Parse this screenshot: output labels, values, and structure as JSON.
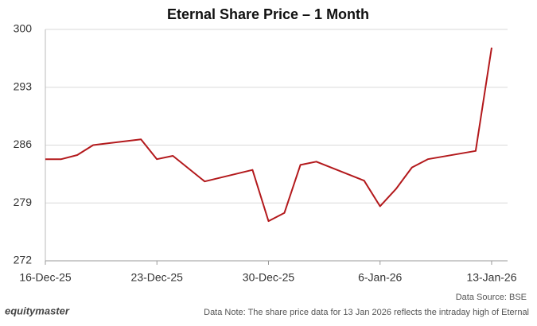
{
  "chart_data": {
    "type": "line",
    "title": "Eternal Share Price – 1 Month",
    "x": [
      "2025-12-16",
      "2025-12-17",
      "2025-12-18",
      "2025-12-19",
      "2025-12-22",
      "2025-12-23",
      "2025-12-24",
      "2025-12-26",
      "2025-12-29",
      "2025-12-30",
      "2025-12-31",
      "2026-01-01",
      "2026-01-02",
      "2026-01-05",
      "2026-01-06",
      "2026-01-07",
      "2026-01-08",
      "2026-01-09",
      "2026-01-12",
      "2026-01-13"
    ],
    "values": [
      284.3,
      284.3,
      284.8,
      286.0,
      286.7,
      284.3,
      284.7,
      281.6,
      283.0,
      276.8,
      277.8,
      283.6,
      284.0,
      281.7,
      278.6,
      280.7,
      283.3,
      284.3,
      285.3,
      297.8
    ],
    "color": "#b3191c",
    "xlim": [
      "2025-12-16",
      "2026-01-14"
    ],
    "xticks": [
      {
        "value": "2025-12-16",
        "label": "16-Dec-25"
      },
      {
        "value": "2025-12-23",
        "label": "23-Dec-25"
      },
      {
        "value": "2025-12-30",
        "label": "30-Dec-25"
      },
      {
        "value": "2026-01-06",
        "label": "6-Jan-26"
      },
      {
        "value": "2026-01-13",
        "label": "13-Jan-26"
      }
    ],
    "ylim": [
      272,
      300
    ],
    "yticks": [
      272,
      279,
      286,
      293,
      300
    ],
    "grid": true,
    "brand": "equitymaster",
    "source": "Data Source: BSE",
    "note": "Data Note: The share price data for 13 Jan 2026 reflects the intraday high of Eternal"
  }
}
